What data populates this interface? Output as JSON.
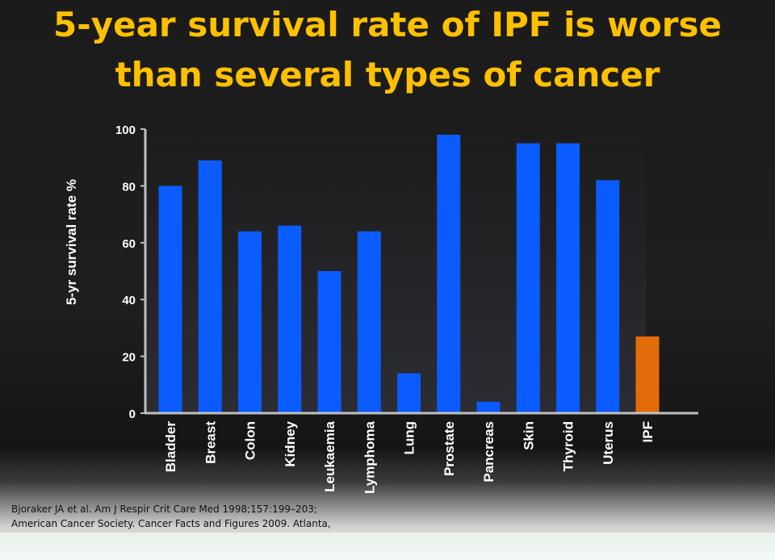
{
  "slide": {
    "title_line1": "5-year survival rate of IPF is worse",
    "title_line2": "than several types of cancer",
    "references": [
      "Bjoraker JA et al. Am J Respir Crit Care Med 1998;157:199–203;",
      "American Cancer Society. Cancer Facts and Figures 2009. Atlanta,"
    ]
  },
  "chart_data": {
    "type": "bar",
    "title": "",
    "xlabel": "",
    "ylabel": "5-yr survival rate %",
    "ylim": [
      0,
      100
    ],
    "yticks": [
      0,
      20,
      40,
      60,
      80,
      100
    ],
    "grid": false,
    "categories": [
      "Bladder",
      "Breast",
      "Colon",
      "Kidney",
      "Leukaemia",
      "Lymphoma",
      "Lung",
      "Prostate",
      "Pancreas",
      "Skin",
      "Thyroid",
      "Uterus",
      "IPF"
    ],
    "values": [
      80,
      89,
      64,
      66,
      50,
      64,
      14,
      98,
      4,
      95,
      95,
      82,
      27
    ],
    "colors": {
      "cancer": "#0a5cff",
      "ipf": "#e36c0a",
      "axis": "#bfbfbf",
      "text": "#ffffff",
      "title": "#ffc000"
    }
  }
}
